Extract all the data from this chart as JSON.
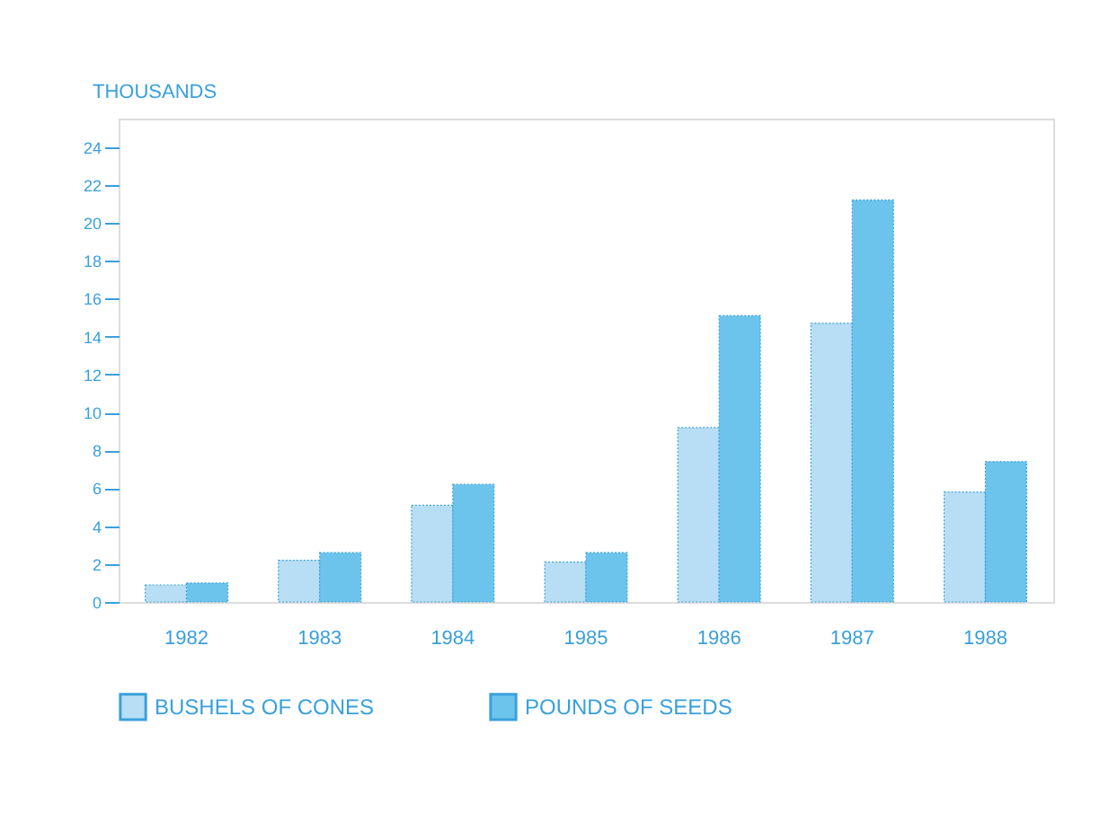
{
  "chart_data": {
    "type": "bar",
    "ylabel": "THOUSANDS",
    "categories": [
      "1982",
      "1983",
      "1984",
      "1985",
      "1986",
      "1987",
      "1988"
    ],
    "series": [
      {
        "name": "BUSHELS OF CONES",
        "color": "#b8def5",
        "values": [
          0.9,
          2.2,
          5.1,
          2.1,
          9.2,
          14.7,
          5.8
        ]
      },
      {
        "name": "POUNDS OF SEEDS",
        "color": "#6cc4ec",
        "values": [
          1.0,
          2.6,
          6.2,
          2.6,
          15.1,
          21.2,
          7.4
        ]
      }
    ],
    "ylim": [
      0,
      25.5
    ],
    "yticks": [
      0,
      2,
      4,
      6,
      8,
      10,
      12,
      14,
      16,
      18,
      20,
      22,
      24
    ],
    "grid": false,
    "legend": "bottom"
  }
}
